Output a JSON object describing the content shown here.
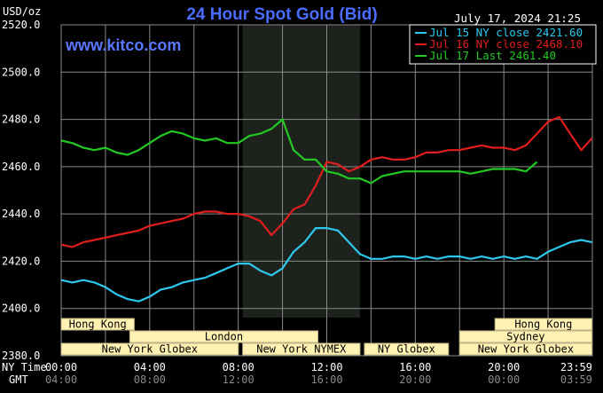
{
  "chart_data": {
    "type": "line",
    "title": "24 Hour Spot Gold (Bid)",
    "date_label": "July 17, 2024 21:25",
    "watermark": "www.kitco.com",
    "ylabel": "USD/oz",
    "ylim": [
      2380,
      2520
    ],
    "yticks": [
      "2520.0",
      "2500.0",
      "2480.0",
      "2460.0",
      "2440.0",
      "2420.0",
      "2400.0",
      "2380.0"
    ],
    "grid": true,
    "legend_position": "top-right",
    "colors": {
      "background": "#000000",
      "grid": "#8a8a8a",
      "title": "#4a6cff",
      "watermark": "#5a78ff",
      "axis_text": "#ffffff",
      "session_fill": "#fff2b3",
      "session_text": "#000000",
      "highlight": "#1d221d"
    },
    "x_labels": {
      "ny_label": "NY Time",
      "gmt_label": "GMT",
      "ny": [
        "00:00",
        "04:00",
        "08:00",
        "12:00",
        "16:00",
        "20:00",
        "23:59"
      ],
      "gmt": [
        "04:00",
        "08:00",
        "12:00",
        "16:00",
        "20:00",
        "00:00",
        "03:59"
      ]
    },
    "sessions": [
      {
        "label": "Hong Kong",
        "x": [
          0,
          3.3
        ],
        "row": 0
      },
      {
        "label": "Hong Kong",
        "x": [
          19.6,
          23.98
        ],
        "row": 0
      },
      {
        "label": "London",
        "x": [
          3.1,
          11.6
        ],
        "row": 1
      },
      {
        "label": "Sydney",
        "x": [
          18.0,
          23.98
        ],
        "row": 1
      },
      {
        "label": "New York Globex",
        "x": [
          0,
          8.0
        ],
        "row": 2
      },
      {
        "label": "New York NYMEX",
        "x": [
          8.2,
          13.5
        ],
        "row": 2
      },
      {
        "label": "NY Globex",
        "x": [
          13.7,
          17.5
        ],
        "row": 2
      },
      {
        "label": "New York Globex",
        "x": [
          18.0,
          23.98
        ],
        "row": 2
      }
    ],
    "highlight_range": [
      8.2,
      13.5
    ],
    "series": [
      {
        "name": "Jul 15 NY close 2421.60",
        "color": "#2ec8ee",
        "x": [
          0,
          0.5,
          1,
          1.5,
          2,
          2.5,
          3,
          3.5,
          4,
          4.5,
          5,
          5.5,
          6,
          6.5,
          7,
          7.5,
          8,
          8.5,
          9,
          9.5,
          10,
          10.5,
          11,
          11.5,
          12,
          12.5,
          13,
          13.5,
          14,
          14.5,
          15,
          15.5,
          16,
          16.5,
          17,
          17.5,
          18,
          18.5,
          19,
          19.5,
          20,
          20.5,
          21,
          21.5,
          22,
          22.5,
          23,
          23.5,
          23.98
        ],
        "values": [
          2412,
          2411,
          2412,
          2411,
          2409,
          2406,
          2404,
          2403,
          2405,
          2408,
          2409,
          2411,
          2412,
          2413,
          2415,
          2417,
          2419,
          2419,
          2416,
          2414,
          2417,
          2424,
          2428,
          2434,
          2434,
          2433,
          2428,
          2423,
          2421,
          2421,
          2422,
          2422,
          2421,
          2422,
          2421,
          2422,
          2422,
          2421,
          2422,
          2421,
          2422,
          2421,
          2422,
          2421,
          2424,
          2426,
          2428,
          2429,
          2428
        ]
      },
      {
        "name": "Jul 16 NY close 2468.10",
        "color": "#e11d1d",
        "x": [
          0,
          0.5,
          1,
          1.5,
          2,
          2.5,
          3,
          3.5,
          4,
          4.5,
          5,
          5.5,
          6,
          6.5,
          7,
          7.5,
          8,
          8.5,
          9,
          9.5,
          10,
          10.5,
          11,
          11.5,
          12,
          12.5,
          13,
          13.5,
          14,
          14.5,
          15,
          15.5,
          16,
          16.5,
          17,
          17.5,
          18,
          18.5,
          19,
          19.5,
          20,
          20.5,
          21,
          21.5,
          22,
          22.5,
          23,
          23.5,
          23.98
        ],
        "values": [
          2427,
          2426,
          2428,
          2429,
          2430,
          2431,
          2432,
          2433,
          2435,
          2436,
          2437,
          2438,
          2440,
          2441,
          2441,
          2440,
          2440,
          2439,
          2437,
          2431,
          2436,
          2442,
          2444,
          2452,
          2462,
          2461,
          2458,
          2460,
          2463,
          2464,
          2463,
          2463,
          2464,
          2466,
          2466,
          2467,
          2467,
          2468,
          2469,
          2468,
          2468,
          2467,
          2469,
          2474,
          2479,
          2481,
          2474,
          2467,
          2472
        ]
      },
      {
        "name": "Jul 17 Last 2461.40",
        "color": "#22c922",
        "x": [
          0,
          0.5,
          1,
          1.5,
          2,
          2.5,
          3,
          3.5,
          4,
          4.5,
          5,
          5.5,
          6,
          6.5,
          7,
          7.5,
          8,
          8.5,
          9,
          9.5,
          10,
          10.5,
          11,
          11.5,
          12,
          12.5,
          13,
          13.5,
          14,
          14.5,
          15,
          15.5,
          16,
          16.5,
          17,
          17.5,
          18,
          18.5,
          19,
          19.5,
          20,
          20.5,
          21,
          21.5
        ],
        "values": [
          2471,
          2470,
          2468,
          2467,
          2468,
          2466,
          2465,
          2467,
          2470,
          2473,
          2475,
          2474,
          2472,
          2471,
          2472,
          2470,
          2470,
          2473,
          2474,
          2476,
          2480,
          2467,
          2463,
          2463,
          2458,
          2457,
          2455,
          2455,
          2453,
          2456,
          2457,
          2458,
          2458,
          2458,
          2458,
          2458,
          2458,
          2457,
          2458,
          2459,
          2459,
          2459,
          2458,
          2462
        ]
      }
    ]
  }
}
